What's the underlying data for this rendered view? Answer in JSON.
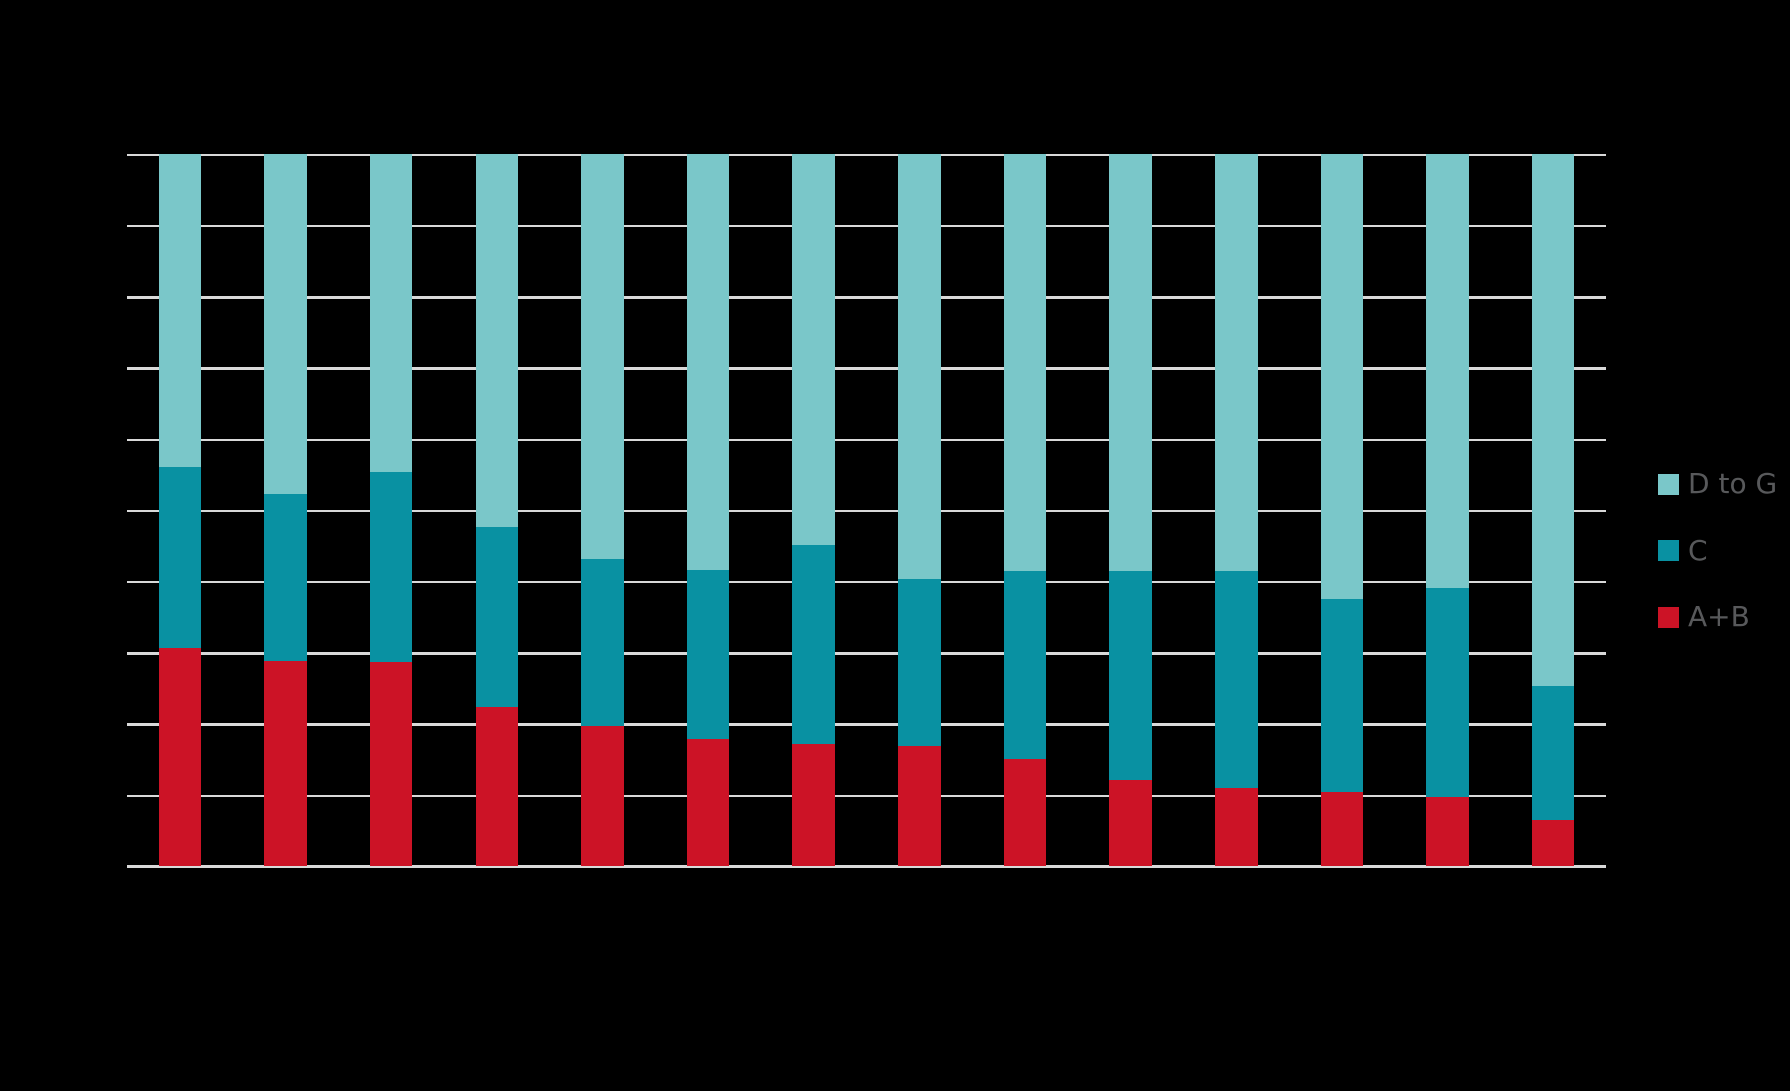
{
  "page": {
    "background_color": "#000000",
    "title_visible": false,
    "x_axis_labels_visible": false,
    "y_axis_labels_visible": false
  },
  "legend": {
    "position": "right",
    "text_color": "#58595B",
    "items": [
      {
        "label": "D to G",
        "color": "#7AC7C9"
      },
      {
        "label": "C",
        "color": "#0991A2"
      },
      {
        "label": "A+B",
        "color": "#CC1326"
      }
    ]
  },
  "chart_data": {
    "type": "bar",
    "subtype": "stacked-100-percent-vertical",
    "title": "",
    "xlabel": "",
    "ylabel": "",
    "ylim": [
      0,
      100
    ],
    "gridline_step": 10,
    "gridline_count": 11,
    "grid": true,
    "gridline_color": "#D9D9D9",
    "legend_position": "right",
    "bar_count": 14,
    "categories": [
      "",
      "",
      "",
      "",
      "",
      "",
      "",
      "",
      "",
      "",
      "",
      "",
      "",
      ""
    ],
    "series": [
      {
        "name": "A+B",
        "color": "#CC1326",
        "values": [
          30.6,
          28.8,
          28.7,
          22.3,
          19.6,
          17.8,
          17.2,
          16.8,
          15.0,
          12.1,
          10.9,
          10.4,
          9.7,
          6.5
        ]
      },
      {
        "name": "C",
        "color": "#0991A2",
        "values": [
          25.4,
          23.5,
          26.7,
          25.3,
          23.5,
          23.8,
          27.9,
          23.5,
          26.4,
          29.4,
          30.6,
          27.1,
          29.3,
          18.8
        ]
      },
      {
        "name": "D to G",
        "color": "#7AC7C9",
        "values": [
          44.0,
          47.7,
          44.6,
          52.4,
          56.9,
          58.4,
          54.9,
          59.7,
          58.6,
          58.5,
          58.5,
          62.5,
          61.0,
          74.7
        ]
      }
    ]
  }
}
